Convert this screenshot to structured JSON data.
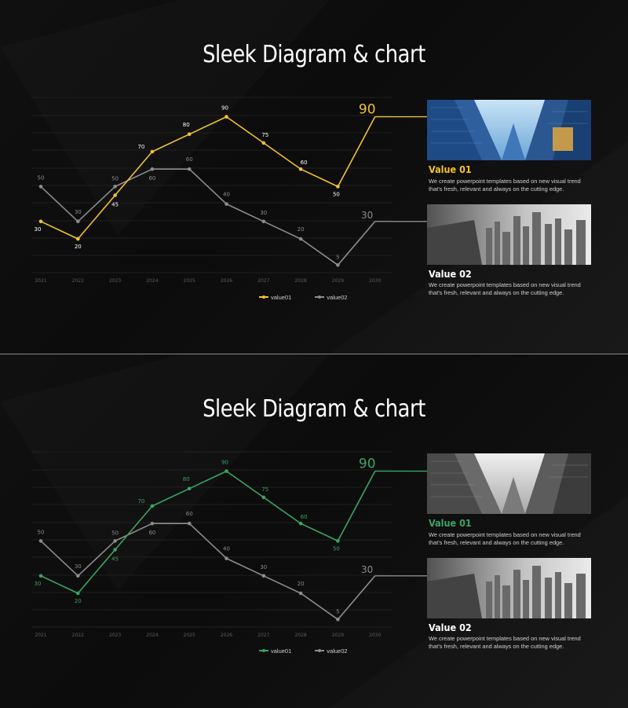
{
  "slides": [
    {
      "title": "Sleek Diagram & chart",
      "accent": "#f2c230",
      "value1": {
        "title": "Value 01",
        "desc": "We create  powerpoint templates  based on new visual trend  that's fresh, relevant and always on the cutting edge.",
        "photo": "city-skyscrapers-color"
      },
      "value2": {
        "title": "Value 02",
        "desc": "We create  powerpoint templates  based on new visual trend  that's fresh, relevant and always on the cutting edge.",
        "photo": "city-aerial-grayscale"
      },
      "legend": [
        "value01",
        "value02"
      ]
    },
    {
      "title": "Sleek Diagram & chart",
      "accent": "#3aa565",
      "value1": {
        "title": "Value 01",
        "desc": "We create  powerpoint templates  based on new visual trend  that's fresh, relevant and always on the cutting edge.",
        "photo": "city-skyscrapers-grayscale"
      },
      "value2": {
        "title": "Value 02",
        "desc": "We create  powerpoint templates  based on new visual trend  that's fresh, relevant and always on the cutting edge.",
        "photo": "city-aerial-grayscale"
      },
      "legend": [
        "value01",
        "value02"
      ]
    }
  ],
  "chart_data": [
    {
      "type": "line",
      "x": [
        "2021",
        "2022",
        "2023",
        "2024",
        "2025",
        "2026",
        "2027",
        "2028",
        "2029",
        "2030"
      ],
      "series": [
        {
          "name": "value01",
          "values": [
            30,
            20,
            45,
            70,
            80,
            90,
            75,
            60,
            50,
            90
          ],
          "color": "#f2c230"
        },
        {
          "name": "value02",
          "values": [
            50,
            30,
            50,
            60,
            60,
            40,
            30,
            20,
            5,
            30
          ],
          "color": "#8c8c8c"
        }
      ],
      "end_labels": [
        "90",
        "30"
      ],
      "grid": true,
      "legend": "bottom"
    },
    {
      "type": "line",
      "x": [
        "2021",
        "2022",
        "2023",
        "2024",
        "2025",
        "2026",
        "2027",
        "2028",
        "2029",
        "2030"
      ],
      "series": [
        {
          "name": "value01",
          "values": [
            30,
            20,
            45,
            70,
            80,
            90,
            75,
            60,
            50,
            90
          ],
          "color": "#3aa565"
        },
        {
          "name": "value02",
          "values": [
            50,
            30,
            50,
            60,
            60,
            40,
            30,
            20,
            5,
            30
          ],
          "color": "#8c8c8c"
        }
      ],
      "end_labels": [
        "90",
        "30"
      ],
      "grid": true,
      "legend": "bottom"
    }
  ]
}
